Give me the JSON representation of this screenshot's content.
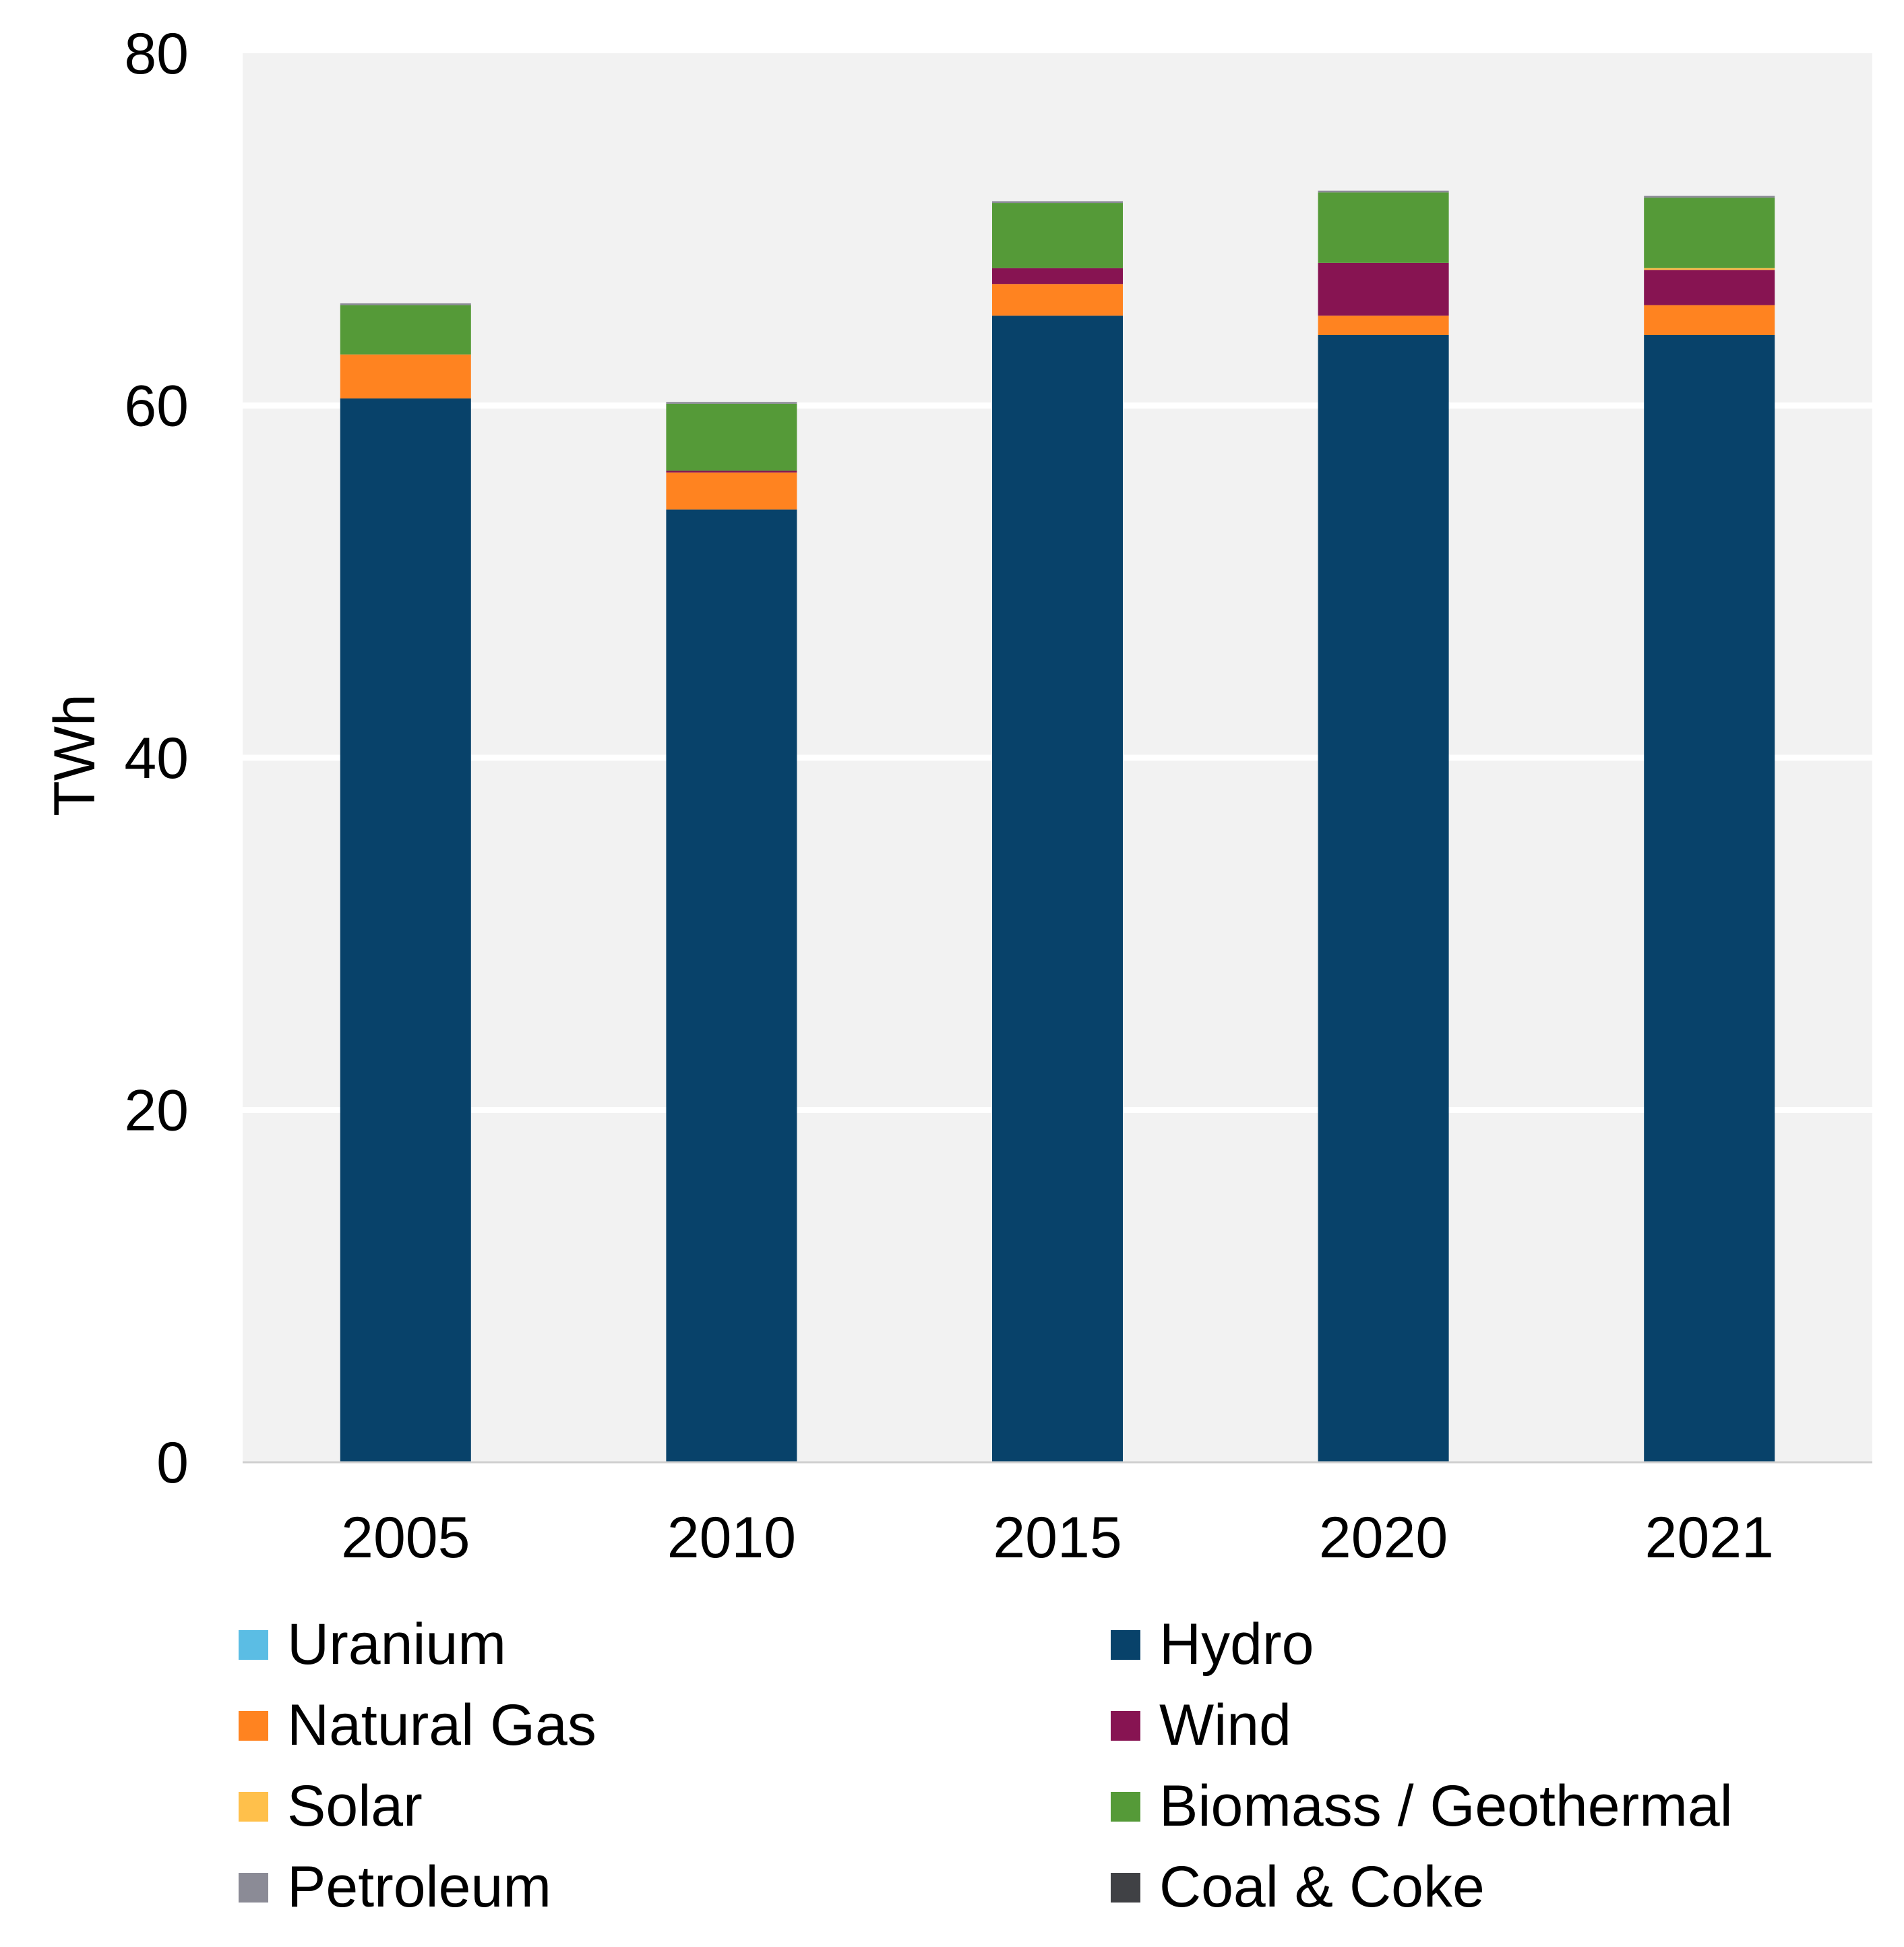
{
  "chart_data": {
    "type": "bar",
    "stacked": true,
    "title": "",
    "xlabel": "",
    "ylabel": "TWh",
    "ylim": [
      0,
      80
    ],
    "yticks": [
      0,
      20,
      40,
      60,
      80
    ],
    "grid": true,
    "legend_position": "bottom",
    "categories": [
      "2005",
      "2010",
      "2015",
      "2020",
      "2021"
    ],
    "series": [
      {
        "name": "Uranium",
        "color": "#5BBDE4",
        "values": [
          0,
          0,
          0,
          0,
          0
        ]
      },
      {
        "name": "Hydro",
        "color": "#08426A",
        "values": [
          60.4,
          54.1,
          65.1,
          64.0,
          64.0
        ]
      },
      {
        "name": "Natural Gas",
        "color": "#FF8320",
        "values": [
          2.5,
          2.1,
          1.8,
          1.1,
          1.7
        ]
      },
      {
        "name": "Wind",
        "color": "#871452",
        "values": [
          0,
          0.1,
          0.9,
          3.0,
          2.0
        ]
      },
      {
        "name": "Solar",
        "color": "#FFC04B",
        "values": [
          0,
          0,
          0,
          0,
          0.1
        ]
      },
      {
        "name": "Biomass / Geothermal",
        "color": "#559A38",
        "values": [
          2.8,
          3.8,
          3.7,
          4.0,
          4.0
        ]
      },
      {
        "name": "Petroleum",
        "color": "#8B8B96",
        "values": [
          0.1,
          0.1,
          0.1,
          0.1,
          0.1
        ]
      },
      {
        "name": "Coal & Coke",
        "color": "#404145",
        "values": [
          0,
          0,
          0,
          0,
          0
        ]
      }
    ],
    "legend_order": [
      "Uranium",
      "Hydro",
      "Natural Gas",
      "Wind",
      "Solar",
      "Biomass / Geothermal",
      "Petroleum",
      "Coal & Coke"
    ]
  }
}
